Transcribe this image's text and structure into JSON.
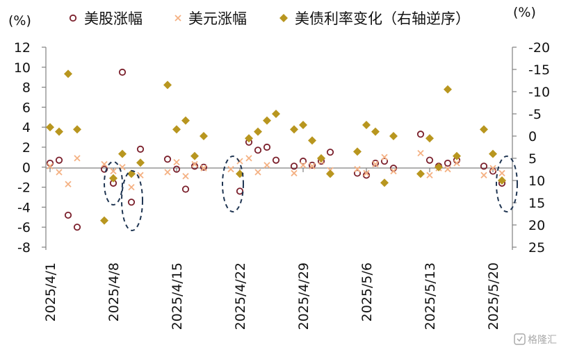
{
  "chart_data": {
    "type": "scatter",
    "left_unit": "(%)",
    "right_unit": "(%)",
    "left_ylim": [
      -8,
      12
    ],
    "left_ticks": [
      "12",
      "10",
      "8",
      "6",
      "4",
      "2",
      "0",
      "-2",
      "-4",
      "-6",
      "-8"
    ],
    "right_ylim": [
      25,
      -20
    ],
    "right_ticks": [
      "-20",
      "-15",
      "-10",
      "-5",
      "0",
      "5",
      "10",
      "15",
      "20",
      "25"
    ],
    "right_axis_reversed": true,
    "x_tick_labels": [
      "2025/4/1",
      "2025/4/8",
      "2025/4/15",
      "2025/4/22",
      "2025/4/29",
      "2025/5/6",
      "2025/5/13",
      "2025/5/20"
    ],
    "legend_position": "top",
    "series": [
      {
        "name": "美股涨幅",
        "axis": "left",
        "marker": "circle",
        "color": "#7a1f2b",
        "points": [
          [
            "2025/4/1",
            0.4
          ],
          [
            "2025/4/2",
            0.7
          ],
          [
            "2025/4/3",
            -4.8
          ],
          [
            "2025/4/4",
            -6.0
          ],
          [
            "2025/4/7",
            -0.2
          ],
          [
            "2025/4/8",
            -1.6
          ],
          [
            "2025/4/9",
            9.5
          ],
          [
            "2025/4/10",
            -3.5
          ],
          [
            "2025/4/11",
            1.8
          ],
          [
            "2025/4/14",
            0.8
          ],
          [
            "2025/4/15",
            -0.2
          ],
          [
            "2025/4/16",
            -2.2
          ],
          [
            "2025/4/17",
            0.1
          ],
          [
            "2025/4/18",
            0.0
          ],
          [
            "2025/4/22",
            -2.4
          ],
          [
            "2025/4/23",
            2.5
          ],
          [
            "2025/4/24",
            1.7
          ],
          [
            "2025/4/25",
            2.0
          ],
          [
            "2025/4/26",
            0.7
          ],
          [
            "2025/4/28",
            0.1
          ],
          [
            "2025/4/29",
            0.6
          ],
          [
            "2025/4/30",
            0.2
          ],
          [
            "2025/5/1",
            0.6
          ],
          [
            "2025/5/2",
            1.5
          ],
          [
            "2025/5/5",
            -0.6
          ],
          [
            "2025/5/6",
            -0.8
          ],
          [
            "2025/5/7",
            0.4
          ],
          [
            "2025/5/8",
            0.6
          ],
          [
            "2025/5/9",
            -0.1
          ],
          [
            "2025/5/12",
            3.3
          ],
          [
            "2025/5/13",
            0.7
          ],
          [
            "2025/5/14",
            0.1
          ],
          [
            "2025/5/15",
            0.4
          ],
          [
            "2025/5/16",
            0.7
          ],
          [
            "2025/5/19",
            0.1
          ],
          [
            "2025/5/20",
            -0.4
          ],
          [
            "2025/5/21",
            -1.6
          ]
        ]
      },
      {
        "name": "美元涨幅",
        "axis": "left",
        "marker": "cross",
        "color": "#f4b183",
        "points": [
          [
            "2025/4/1",
            0.1
          ],
          [
            "2025/4/2",
            -0.5
          ],
          [
            "2025/4/3",
            -1.7
          ],
          [
            "2025/4/4",
            0.9
          ],
          [
            "2025/4/7",
            0.3
          ],
          [
            "2025/4/8",
            -0.4
          ],
          [
            "2025/4/9",
            0.0
          ],
          [
            "2025/4/10",
            -2.0
          ],
          [
            "2025/4/11",
            -0.8
          ],
          [
            "2025/4/14",
            -0.5
          ],
          [
            "2025/4/15",
            0.5
          ],
          [
            "2025/4/16",
            -0.9
          ],
          [
            "2025/4/17",
            0.3
          ],
          [
            "2025/4/18",
            -0.1
          ],
          [
            "2025/4/21",
            -0.2
          ],
          [
            "2025/4/22",
            0.6
          ],
          [
            "2025/4/23",
            0.9
          ],
          [
            "2025/4/24",
            -0.5
          ],
          [
            "2025/4/25",
            0.2
          ],
          [
            "2025/4/28",
            -0.6
          ],
          [
            "2025/4/29",
            0.2
          ],
          [
            "2025/4/30",
            0.1
          ],
          [
            "2025/5/1",
            0.6
          ],
          [
            "2025/5/2",
            -0.3
          ],
          [
            "2025/5/5",
            -0.2
          ],
          [
            "2025/5/6",
            -0.6
          ],
          [
            "2025/5/7",
            0.3
          ],
          [
            "2025/5/8",
            1.0
          ],
          [
            "2025/5/9",
            -0.4
          ],
          [
            "2025/5/12",
            1.4
          ],
          [
            "2025/5/13",
            -0.8
          ],
          [
            "2025/5/14",
            -0.1
          ],
          [
            "2025/5/15",
            -0.2
          ],
          [
            "2025/5/16",
            0.4
          ],
          [
            "2025/5/19",
            -0.8
          ],
          [
            "2025/5/20",
            -0.1
          ],
          [
            "2025/5/21",
            -0.6
          ]
        ]
      },
      {
        "name": "美债利率变化（右轴逆序）",
        "axis": "right",
        "marker": "diamond",
        "color": "#b8961f",
        "points": [
          [
            "2025/4/1",
            -2.0
          ],
          [
            "2025/4/2",
            -1.0
          ],
          [
            "2025/4/3",
            -14.0
          ],
          [
            "2025/4/4",
            -1.5
          ],
          [
            "2025/4/7",
            19.0
          ],
          [
            "2025/4/8",
            9.5
          ],
          [
            "2025/4/9",
            4.0
          ],
          [
            "2025/4/10",
            8.5
          ],
          [
            "2025/4/11",
            6.0
          ],
          [
            "2025/4/14",
            -11.5
          ],
          [
            "2025/4/15",
            -1.5
          ],
          [
            "2025/4/16",
            -3.5
          ],
          [
            "2025/4/17",
            4.5
          ],
          [
            "2025/4/18",
            0.0
          ],
          [
            "2025/4/22",
            8.5
          ],
          [
            "2025/4/23",
            0.5
          ],
          [
            "2025/4/24",
            -1.0
          ],
          [
            "2025/4/25",
            -3.5
          ],
          [
            "2025/4/26",
            -5.0
          ],
          [
            "2025/4/28",
            -1.5
          ],
          [
            "2025/4/29",
            -2.5
          ],
          [
            "2025/4/30",
            1.0
          ],
          [
            "2025/5/1",
            5.0
          ],
          [
            "2025/5/2",
            8.5
          ],
          [
            "2025/5/5",
            3.5
          ],
          [
            "2025/5/6",
            -2.5
          ],
          [
            "2025/5/7",
            -1.0
          ],
          [
            "2025/5/8",
            10.5
          ],
          [
            "2025/5/9",
            0.0
          ],
          [
            "2025/5/12",
            8.5
          ],
          [
            "2025/5/13",
            0.5
          ],
          [
            "2025/5/14",
            7.0
          ],
          [
            "2025/5/15",
            -10.5
          ],
          [
            "2025/5/16",
            4.5
          ],
          [
            "2025/5/19",
            -1.5
          ],
          [
            "2025/5/20",
            4.0
          ],
          [
            "2025/5/21",
            10.0
          ]
        ]
      }
    ]
  },
  "watermark": {
    "text": "格隆汇",
    "icon": "brand-logo-icon"
  }
}
